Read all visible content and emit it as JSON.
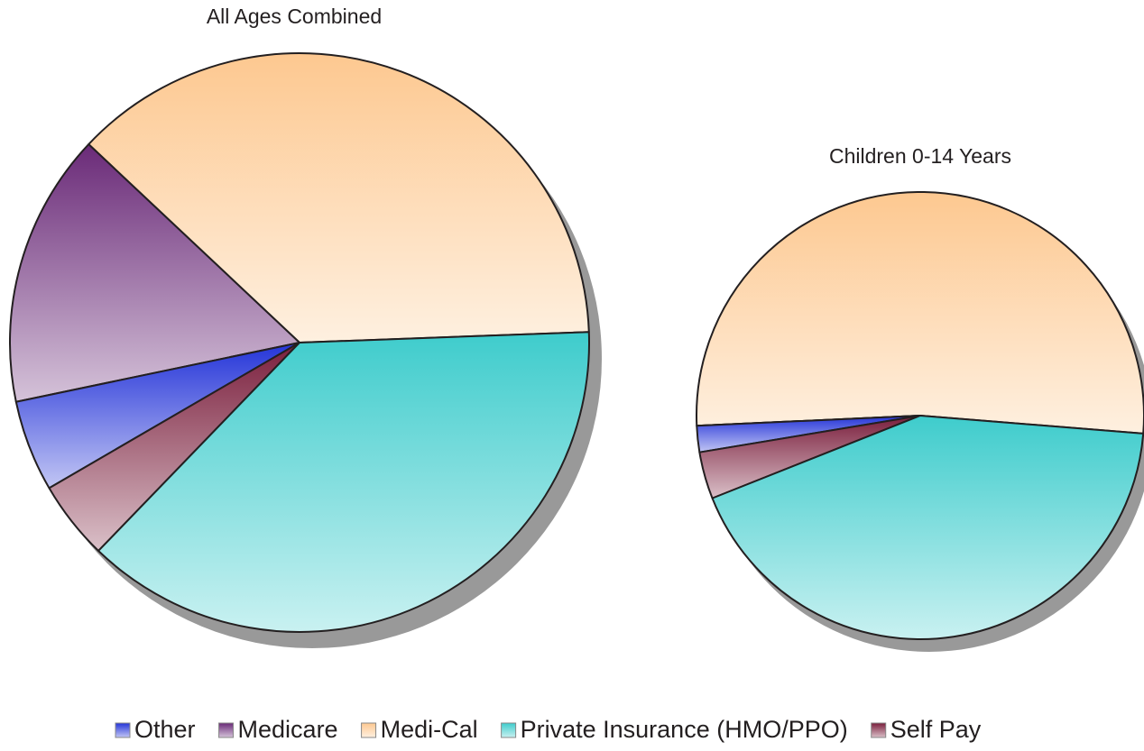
{
  "chart_data": [
    {
      "type": "pie",
      "title": "All Ages Combined",
      "categories": [
        "Other",
        "Medicare",
        "Medi-Cal",
        "Private Insurance (HMO/PPO)",
        "Self Pay"
      ],
      "colors": [
        "#2434d8",
        "#6a2a78",
        "#fdc890",
        "#3ecccc",
        "#7a1e3c"
      ],
      "values": [
        5.1,
        15.3,
        37.4,
        37.8,
        4.4
      ]
    },
    {
      "type": "pie",
      "title": "Children  0-14 Years",
      "values": [
        1.9,
        0,
        52.0,
        42.7,
        3.4
      ]
    }
  ]
}
